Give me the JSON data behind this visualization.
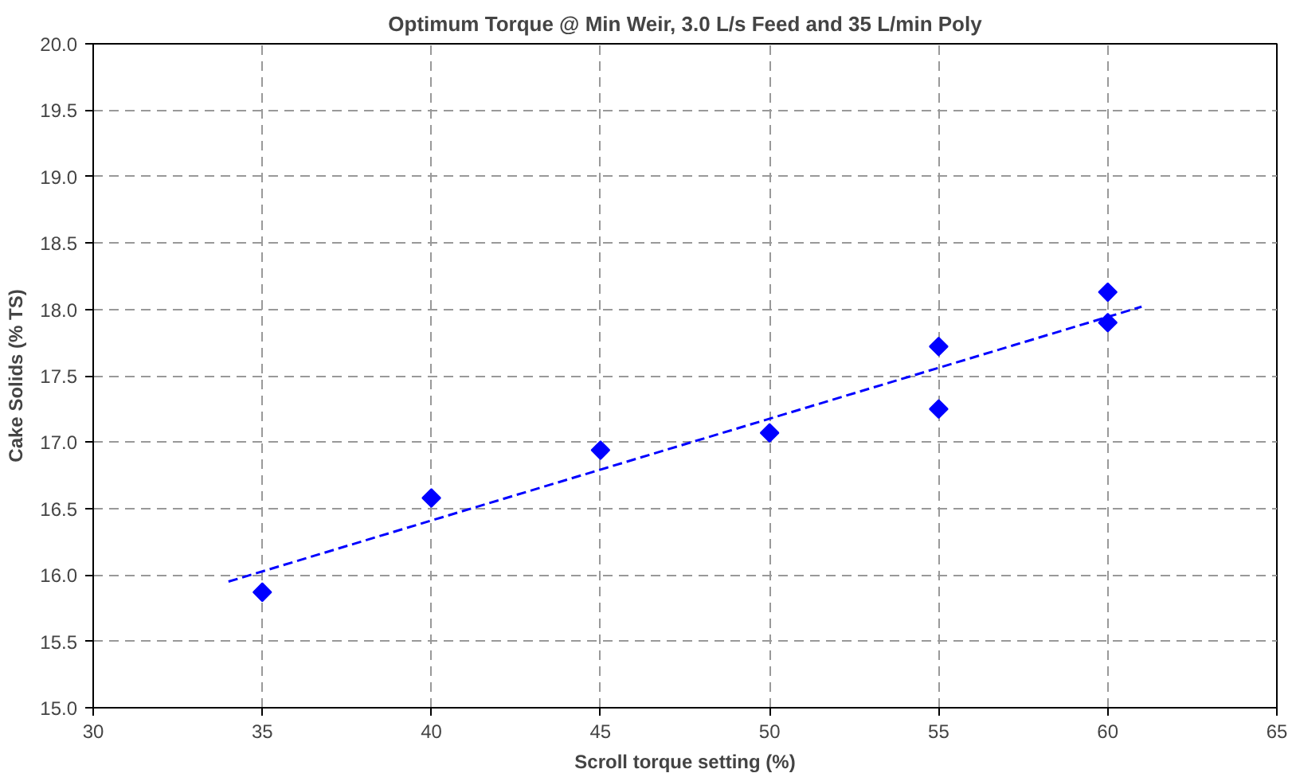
{
  "chart_data": {
    "type": "scatter",
    "title": "Optimum Torque @ Min Weir, 3.0 L/s Feed and 35 L/min Poly",
    "xlabel": "Scroll torque setting (%)",
    "ylabel": "Cake Solids (% TS)",
    "xlim": [
      30,
      65
    ],
    "xticks": [
      30,
      35,
      40,
      45,
      50,
      55,
      60,
      65
    ],
    "ylim": [
      15.0,
      20.0
    ],
    "yticks": [
      {
        "value": 15,
        "label": "15.0"
      },
      {
        "value": 15.5,
        "label": "15.5"
      },
      {
        "value": 16,
        "label": "16.0"
      },
      {
        "value": 16.5,
        "label": "16.5"
      },
      {
        "value": 17,
        "label": "17.0"
      },
      {
        "value": 17.5,
        "label": "17.5"
      },
      {
        "value": 18,
        "label": "18.0"
      },
      {
        "value": 18.5,
        "label": "18.5"
      },
      {
        "value": 19,
        "label": "19.0"
      },
      {
        "value": 19.5,
        "label": "19.5"
      },
      {
        "value": 20,
        "label": "20.0"
      }
    ],
    "grid": true,
    "marker": "diamond",
    "series": [
      {
        "color": "#0000ff",
        "x": [
          35,
          40,
          45,
          50,
          55,
          55,
          60,
          60
        ],
        "values": [
          15.87,
          16.58,
          16.94,
          17.07,
          17.72,
          17.25,
          18.13,
          17.9
        ]
      },
      {
        "type": "line",
        "color": "#0000ff",
        "line_style": "dashed",
        "marker": "none",
        "x": [
          34,
          61
        ],
        "values": [
          15.95,
          18.02
        ]
      }
    ]
  }
}
